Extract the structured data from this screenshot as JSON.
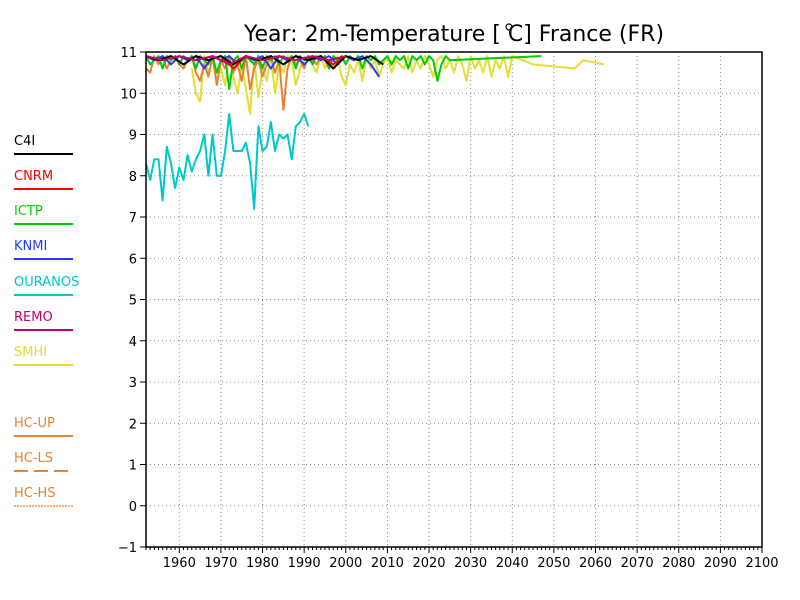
{
  "chart_data": {
    "type": "line",
    "title": "Year: 2m-Temperature [   C] France (FR)",
    "xlim": [
      1952,
      2100
    ],
    "ylim": [
      -1,
      11
    ],
    "x_ticks": [
      1960,
      1970,
      1980,
      1990,
      2000,
      2010,
      2020,
      2030,
      2040,
      2050,
      2060,
      2070,
      2080,
      2090,
      2100
    ],
    "y_ticks": [
      -1,
      0,
      1,
      2,
      3,
      4,
      5,
      6,
      7,
      8,
      9,
      10,
      11
    ],
    "grid": true,
    "legend_position": "left",
    "legend": [
      {
        "name": "C4I",
        "color": "#000000",
        "style": "solid"
      },
      {
        "name": "CNRM",
        "color": "#ff0000",
        "style": "solid"
      },
      {
        "name": "ICTP",
        "color": "#00cc00",
        "style": "solid"
      },
      {
        "name": "KNMI",
        "color": "#1e3cff",
        "style": "solid"
      },
      {
        "name": "OURANOS",
        "color": "#00c8c8",
        "style": "solid"
      },
      {
        "name": "REMO",
        "color": "#c80064",
        "style": "solid"
      },
      {
        "name": "SMHI",
        "color": "#e6dc32",
        "style": "solid"
      },
      {
        "name": "HC-UP",
        "color": "#e68232",
        "style": "solid"
      },
      {
        "name": "HC-LS",
        "color": "#e68232",
        "style": "dashed"
      },
      {
        "name": "HC-HS",
        "color": "#e68232",
        "style": "dotted"
      }
    ],
    "series": [
      {
        "name": "OURANOS",
        "color": "#00c8c8",
        "x": [
          1952,
          1953,
          1954,
          1955,
          1956,
          1957,
          1958,
          1959,
          1960,
          1961,
          1962,
          1963,
          1964,
          1965,
          1966,
          1967,
          1968,
          1969,
          1970,
          1971,
          1972,
          1973,
          1974,
          1975,
          1976,
          1977,
          1978,
          1979,
          1980,
          1981,
          1982,
          1983,
          1984,
          1985,
          1986,
          1987,
          1988,
          1989,
          1990,
          1991
        ],
        "y": [
          8.3,
          7.9,
          8.4,
          8.4,
          7.4,
          8.7,
          8.3,
          7.7,
          8.2,
          7.9,
          8.5,
          8.1,
          8.4,
          8.6,
          9.0,
          8.0,
          9.0,
          8.0,
          8.0,
          8.6,
          9.5,
          8.6,
          8.6,
          8.6,
          8.8,
          8.3,
          7.2,
          9.2,
          8.6,
          8.7,
          9.3,
          8.6,
          9.0,
          8.9,
          9.0,
          8.4,
          9.2,
          9.3,
          9.5,
          9.2
        ]
      },
      {
        "name": "SMHI",
        "color": "#e6dc32",
        "x": [
          1963,
          1964,
          1965,
          1966,
          1967,
          1968,
          1969,
          1970,
          1971,
          1972,
          1973,
          1974,
          1975,
          1976,
          1977,
          1978,
          1979,
          1980,
          1981,
          1982,
          1983,
          1984,
          1985,
          1986,
          1987,
          1988,
          1989,
          1990,
          1991,
          1992,
          1993,
          1994,
          1995,
          1996,
          1997,
          1998,
          1999,
          2000,
          2001,
          2002,
          2003,
          2004,
          2005,
          2006,
          2007,
          2008,
          2009,
          2010,
          2011,
          2012,
          2013,
          2014,
          2015,
          2016,
          2017,
          2018,
          2019,
          2020,
          2021,
          2022,
          2023,
          2024,
          2025,
          2026,
          2027,
          2028,
          2029,
          2030,
          2031,
          2032,
          2033,
          2034,
          2035,
          2036,
          2037,
          2038,
          2039,
          2040,
          2045,
          2055,
          2057,
          2062
        ],
        "y": [
          10.6,
          10.0,
          9.8,
          10.9,
          10.5,
          10.8,
          10.3,
          10.6,
          10.2,
          10.9,
          10.4,
          10.0,
          10.7,
          10.1,
          9.5,
          10.8,
          9.9,
          10.6,
          10.3,
          10.9,
          10.0,
          10.7,
          10.5,
          10.9,
          10.8,
          10.2,
          10.6,
          10.8,
          10.9,
          10.7,
          10.5,
          10.9,
          10.6,
          10.8,
          10.6,
          10.9,
          10.4,
          10.2,
          10.7,
          10.5,
          10.8,
          10.3,
          10.9,
          10.6,
          10.8,
          10.4,
          10.7,
          10.9,
          10.5,
          10.8,
          10.7,
          10.6,
          10.9,
          10.5,
          10.8,
          10.6,
          10.9,
          10.7,
          10.4,
          10.8,
          10.9,
          10.6,
          10.8,
          10.5,
          10.9,
          10.7,
          10.3,
          10.9,
          10.6,
          10.8,
          10.5,
          10.9,
          10.4,
          10.8,
          10.6,
          10.9,
          10.4,
          10.9,
          10.7,
          10.6,
          10.8,
          10.7
        ]
      },
      {
        "name": "HC-UP",
        "color": "#e68232",
        "x": [
          1952,
          1953,
          1954,
          1955,
          1956,
          1957,
          1958,
          1959,
          1960,
          1961,
          1962,
          1963,
          1964,
          1965,
          1966,
          1967,
          1968,
          1969,
          1970,
          1971,
          1972,
          1973,
          1974,
          1975,
          1976,
          1977,
          1978,
          1979,
          1980,
          1981,
          1982,
          1983,
          1984,
          1985,
          1986,
          1987,
          1988,
          1989,
          1990,
          1991,
          1992,
          1993,
          1994,
          1995,
          1996,
          1997,
          1998
        ],
        "y": [
          10.6,
          10.5,
          10.9,
          10.7,
          10.9,
          10.6,
          10.8,
          10.9,
          10.7,
          10.6,
          10.8,
          10.9,
          10.5,
          10.3,
          10.7,
          10.4,
          10.9,
          10.2,
          10.8,
          10.6,
          10.9,
          10.5,
          10.7,
          10.3,
          10.9,
          10.1,
          10.6,
          10.8,
          10.4,
          10.7,
          10.9,
          10.5,
          10.8,
          9.6,
          10.6,
          10.9,
          10.7,
          10.8,
          10.6,
          10.9,
          10.8,
          10.7,
          10.9,
          10.8,
          10.6,
          10.9,
          10.8
        ]
      },
      {
        "name": "ICTP",
        "color": "#00cc00",
        "x": [
          1952,
          1953,
          1954,
          1955,
          1956,
          1957,
          1958,
          1959,
          1960,
          1961,
          1962,
          1963,
          1964,
          1965,
          1966,
          1967,
          1968,
          1969,
          1970,
          1971,
          1972,
          1973,
          1974,
          1975,
          1976,
          1977,
          1978,
          1979,
          1980,
          1981,
          1982,
          1983,
          1984,
          1985,
          1986,
          1987,
          1988,
          1989,
          1990,
          1991,
          1992,
          1993,
          1994,
          1995,
          1996,
          1997,
          1998,
          1999,
          2000,
          2001,
          2002,
          2003,
          2004,
          2005,
          2006,
          2007,
          2008,
          2009,
          2010,
          2011,
          2012,
          2013,
          2014,
          2015,
          2016,
          2017,
          2018,
          2019,
          2020,
          2021,
          2022,
          2023,
          2024,
          2025,
          2047
        ],
        "y": [
          10.9,
          10.7,
          10.8,
          10.9,
          10.6,
          10.9,
          10.8,
          10.9,
          10.7,
          10.9,
          10.8,
          10.9,
          10.6,
          10.9,
          10.8,
          10.7,
          10.9,
          10.5,
          10.8,
          10.9,
          10.1,
          10.8,
          10.9,
          10.6,
          10.9,
          10.8,
          10.7,
          10.9,
          10.6,
          10.9,
          10.8,
          10.9,
          10.7,
          10.9,
          10.8,
          10.9,
          10.6,
          10.9,
          10.8,
          10.9,
          10.7,
          10.9,
          10.8,
          10.9,
          10.6,
          10.9,
          10.8,
          10.9,
          10.7,
          10.9,
          10.8,
          10.9,
          10.6,
          10.9,
          10.8,
          10.9,
          10.7,
          10.8,
          10.9,
          10.7,
          10.9,
          10.8,
          10.9,
          10.6,
          10.9,
          10.8,
          10.9,
          10.7,
          10.9,
          10.8,
          10.3,
          10.7,
          10.9,
          10.8,
          10.9
        ]
      },
      {
        "name": "KNMI",
        "color": "#1e3cff",
        "x": [
          1952,
          1954,
          1956,
          1958,
          1960,
          1962,
          1964,
          1966,
          1968,
          1970,
          1972,
          1974,
          1976,
          1978,
          1980,
          1982,
          1984,
          1986,
          1988,
          1990,
          1992,
          1994,
          1996,
          1998,
          2000,
          2002,
          2004,
          2006,
          2008
        ],
        "y": [
          10.9,
          10.8,
          10.9,
          10.7,
          10.9,
          10.8,
          10.9,
          10.6,
          10.9,
          10.8,
          10.9,
          10.7,
          10.9,
          10.8,
          10.9,
          10.6,
          10.9,
          10.8,
          10.9,
          10.7,
          10.9,
          10.8,
          10.9,
          10.7,
          10.9,
          10.8,
          10.9,
          10.7,
          10.4
        ]
      },
      {
        "name": "CNRM",
        "color": "#ff0000",
        "x": [
          1952,
          1955,
          1958,
          1961,
          1964,
          1967,
          1970,
          1973,
          1976,
          1979,
          1982,
          1985,
          1988,
          1991,
          1994,
          1997,
          2000
        ],
        "y": [
          10.9,
          10.8,
          10.9,
          10.7,
          10.9,
          10.8,
          10.9,
          10.6,
          10.9,
          10.8,
          10.9,
          10.7,
          10.9,
          10.8,
          10.9,
          10.7,
          10.9
        ]
      },
      {
        "name": "C4I",
        "color": "#000000",
        "x": [
          1952,
          1955,
          1958,
          1961,
          1964,
          1967,
          1970,
          1973,
          1976,
          1979,
          1982,
          1985,
          1988,
          1991,
          1994,
          1997,
          2000,
          2003,
          2006,
          2009
        ],
        "y": [
          10.9,
          10.8,
          10.9,
          10.7,
          10.9,
          10.8,
          10.9,
          10.7,
          10.9,
          10.8,
          10.9,
          10.7,
          10.9,
          10.8,
          10.9,
          10.6,
          10.9,
          10.8,
          10.9,
          10.7
        ]
      },
      {
        "name": "REMO",
        "color": "#c80064",
        "x": [
          1952,
          1956,
          1960,
          1964,
          1968,
          1972,
          1976,
          1980,
          1984,
          1988,
          1992,
          1996,
          2000
        ],
        "y": [
          10.9,
          10.8,
          10.9,
          10.8,
          10.9,
          10.7,
          10.9,
          10.8,
          10.9,
          10.8,
          10.9,
          10.8,
          10.9
        ]
      }
    ]
  }
}
